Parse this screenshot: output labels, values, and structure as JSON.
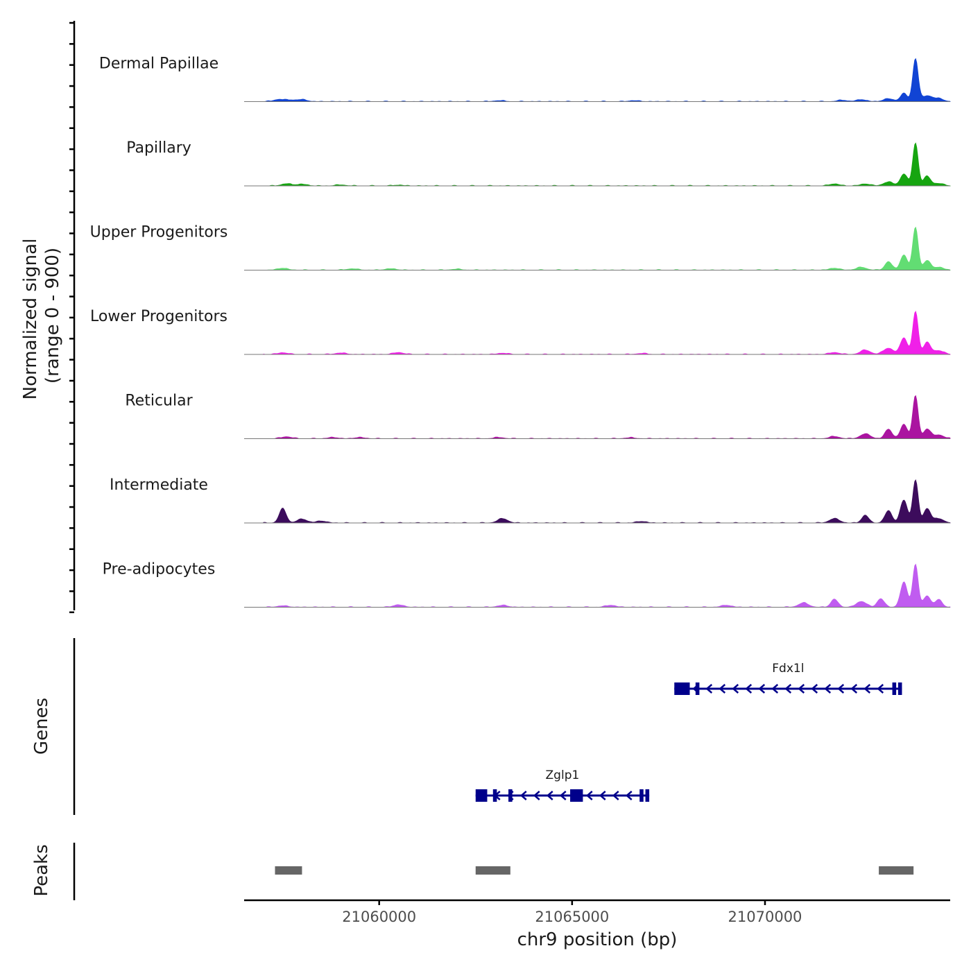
{
  "chart_data": {
    "type": "coverage-track",
    "region": {
      "chrom": "chr9",
      "start": 21056500,
      "end": 21074800
    },
    "xlabel": "chr9 position (bp)",
    "x_ticks": [
      21060000,
      21065000,
      21070000
    ],
    "x_tick_labels": [
      "21060000",
      "21065000",
      "21070000"
    ],
    "ylabel": "Normalized signal",
    "ylabel_range": "(range 0 - 900)",
    "y_range": [
      0,
      900
    ],
    "genes_label": "Genes",
    "peaks_label": "Peaks",
    "groups": [
      {
        "name": "Dermal Papillae",
        "color": "#1144d4",
        "peaks": [
          [
            21057400,
            45
          ],
          [
            21058000,
            40
          ],
          [
            21057700,
            30
          ],
          [
            21063100,
            20
          ],
          [
            21066600,
            20
          ],
          [
            21072000,
            28
          ],
          [
            21072500,
            40
          ],
          [
            21073200,
            60
          ],
          [
            21073600,
            170
          ],
          [
            21073900,
            900
          ],
          [
            21074200,
            120
          ],
          [
            21074500,
            60
          ]
        ]
      },
      {
        "name": "Papillary",
        "color": "#16a510",
        "peaks": [
          [
            21057600,
            45
          ],
          [
            21058000,
            35
          ],
          [
            21059000,
            20
          ],
          [
            21060500,
            15
          ],
          [
            21071800,
            40
          ],
          [
            21072600,
            40
          ],
          [
            21073200,
            80
          ],
          [
            21073600,
            250
          ],
          [
            21073900,
            900
          ],
          [
            21074200,
            200
          ],
          [
            21074500,
            50
          ]
        ]
      },
      {
        "name": "Upper Progenitors",
        "color": "#62dd73",
        "peaks": [
          [
            21057500,
            40
          ],
          [
            21059300,
            30
          ],
          [
            21060300,
            30
          ],
          [
            21062000,
            20
          ],
          [
            21071800,
            40
          ],
          [
            21072500,
            60
          ],
          [
            21073200,
            180
          ],
          [
            21073600,
            320
          ],
          [
            21073900,
            900
          ],
          [
            21074200,
            200
          ],
          [
            21074500,
            60
          ]
        ]
      },
      {
        "name": "Lower Progenitors",
        "color": "#f020e8",
        "peaks": [
          [
            21057500,
            35
          ],
          [
            21059000,
            30
          ],
          [
            21060500,
            40
          ],
          [
            21063200,
            25
          ],
          [
            21066800,
            20
          ],
          [
            21071800,
            40
          ],
          [
            21072600,
            90
          ],
          [
            21073200,
            130
          ],
          [
            21073600,
            350
          ],
          [
            21073900,
            900
          ],
          [
            21074200,
            250
          ],
          [
            21074500,
            80
          ]
        ]
      },
      {
        "name": "Reticular",
        "color": "#aa14a0",
        "peaks": [
          [
            21057600,
            40
          ],
          [
            21058800,
            25
          ],
          [
            21059500,
            25
          ],
          [
            21063100,
            25
          ],
          [
            21066500,
            20
          ],
          [
            21071800,
            45
          ],
          [
            21072600,
            100
          ],
          [
            21073200,
            200
          ],
          [
            21073600,
            300
          ],
          [
            21073900,
            900
          ],
          [
            21074200,
            200
          ],
          [
            21074500,
            80
          ]
        ]
      },
      {
        "name": "Intermediate",
        "color": "#3c0c5c",
        "peaks": [
          [
            21057500,
            300
          ],
          [
            21058000,
            80
          ],
          [
            21058500,
            40
          ],
          [
            21063200,
            90
          ],
          [
            21066800,
            30
          ],
          [
            21071800,
            90
          ],
          [
            21072600,
            160
          ],
          [
            21073200,
            260
          ],
          [
            21073600,
            480
          ],
          [
            21073900,
            900
          ],
          [
            21074200,
            300
          ],
          [
            21074500,
            90
          ]
        ]
      },
      {
        "name": "Pre-adipocytes",
        "color": "#c05cf0",
        "peaks": [
          [
            21057500,
            30
          ],
          [
            21060500,
            50
          ],
          [
            21063200,
            40
          ],
          [
            21066000,
            40
          ],
          [
            21069000,
            40
          ],
          [
            21071000,
            90
          ],
          [
            21071800,
            170
          ],
          [
            21072500,
            120
          ],
          [
            21073000,
            180
          ],
          [
            21073600,
            520
          ],
          [
            21073900,
            900
          ],
          [
            21074200,
            240
          ],
          [
            21074500,
            160
          ]
        ]
      }
    ],
    "genes": [
      {
        "name": "Fdx1l",
        "strand": "-",
        "start": 21067650,
        "end": 21073550,
        "exons": [
          [
            21067650,
            21068050
          ],
          [
            21068200,
            21068300
          ],
          [
            21073300,
            21073400
          ],
          [
            21073450,
            21073550
          ]
        ]
      },
      {
        "name": "Zglp1",
        "strand": "-",
        "start": 21062500,
        "end": 21067000,
        "exons": [
          [
            21062500,
            21062800
          ],
          [
            21062950,
            21063050
          ],
          [
            21063350,
            21063450
          ],
          [
            21064950,
            21065280
          ],
          [
            21066750,
            21066850
          ],
          [
            21066900,
            21067000
          ]
        ]
      }
    ],
    "peak_regions": [
      [
        21057300,
        21058000
      ],
      [
        21062500,
        21063400
      ],
      [
        21072950,
        21073850
      ]
    ],
    "colors": {
      "gene": "#00008b",
      "peak": "#666666",
      "axis": "#000000",
      "baseline": "#777777"
    }
  }
}
